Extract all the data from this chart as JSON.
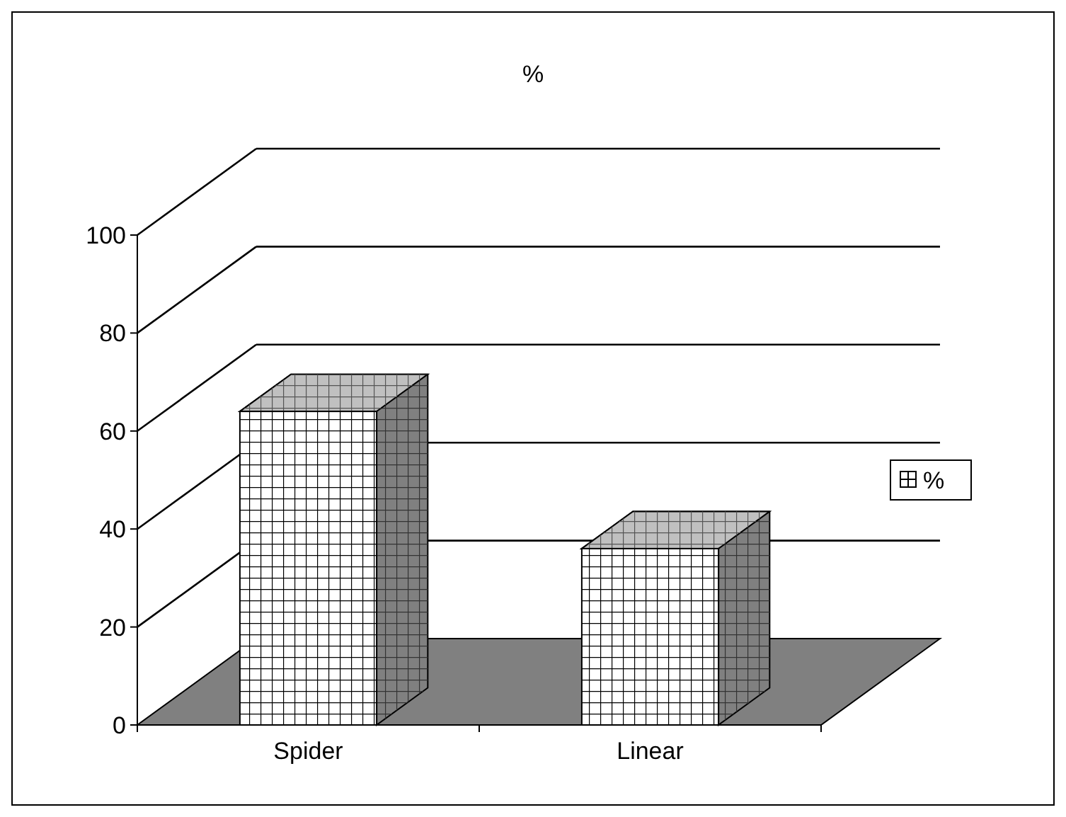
{
  "chart_data": {
    "type": "bar",
    "title": "%",
    "categories": [
      "Spider",
      "Linear"
    ],
    "series": [
      {
        "name": "%",
        "color": "#ffffff",
        "values": [
          64,
          36
        ]
      }
    ],
    "ylim": [
      0,
      100
    ],
    "yticks": [
      0,
      20,
      40,
      60,
      80,
      100
    ],
    "grid": "y",
    "legend": "right"
  }
}
